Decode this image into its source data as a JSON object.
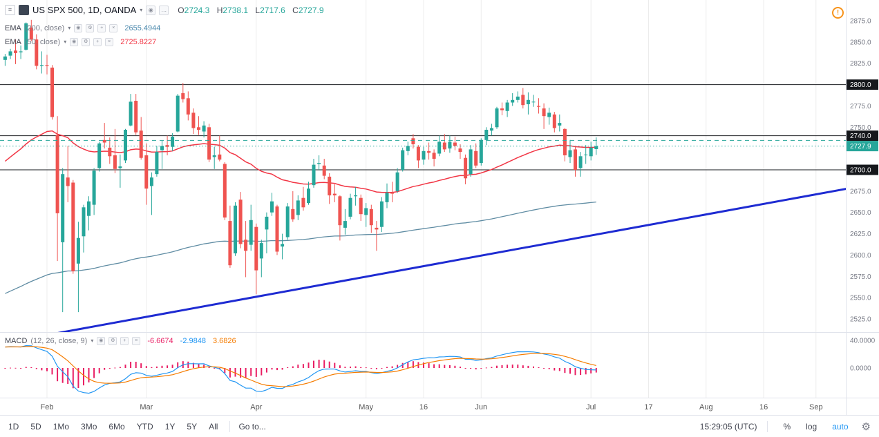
{
  "header": {
    "symbol_title": "US SPX 500, 1D, OANDA",
    "ohlc": {
      "o_label": "O",
      "o_value": "2724.3",
      "h_label": "H",
      "h_value": "2738.1",
      "l_label": "L",
      "l_value": "2717.6",
      "c_label": "C",
      "c_value": "2727.9"
    },
    "alert_icon": "!"
  },
  "indicators": [
    {
      "name": "EMA",
      "params": "(200, close)",
      "value": "2655.4944",
      "color": "#4b89ad"
    },
    {
      "name": "EMA",
      "params": "(50, close)",
      "value": "2725.8227",
      "color": "#f23645"
    }
  ],
  "macd_legend": {
    "name": "MACD",
    "params": "(12, 26, close, 9)",
    "values": [
      {
        "text": "-6.6674",
        "color": "#e91e63"
      },
      {
        "text": "-2.9848",
        "color": "#2196f3"
      },
      {
        "text": "3.6826",
        "color": "#f57c00"
      }
    ]
  },
  "price_axis": {
    "labels": [
      "2875.0",
      "2850.0",
      "2825.0",
      "2775.0",
      "2750.0",
      "2675.0",
      "2650.0",
      "2625.0",
      "2600.0",
      "2575.0",
      "2550.0",
      "2525.0"
    ],
    "badges": [
      {
        "text": "2800.0",
        "price": 2800,
        "bg": "#16181c",
        "fg": "#ffffff"
      },
      {
        "text": "2740.0",
        "price": 2740,
        "bg": "#16181c",
        "fg": "#ffffff"
      },
      {
        "text": "2727.9",
        "price": 2727.9,
        "bg": "#26a69a",
        "fg": "#ffffff"
      },
      {
        "text": "2700.0",
        "price": 2700,
        "bg": "#16181c",
        "fg": "#ffffff"
      }
    ],
    "macd_labels": [
      {
        "text": "40.0000",
        "value": 40
      },
      {
        "text": "0.0000",
        "value": 0
      }
    ]
  },
  "time_axis": [
    {
      "label": "Feb",
      "i": 8
    },
    {
      "label": "Mar",
      "i": 27
    },
    {
      "label": "Apr",
      "i": 48
    },
    {
      "label": "May",
      "i": 69
    },
    {
      "label": "16",
      "i": 80
    },
    {
      "label": "Jun",
      "i": 91
    },
    {
      "label": "Jul",
      "i": 112
    },
    {
      "label": "17",
      "i": 123
    },
    {
      "label": "Aug",
      "i": 134
    },
    {
      "label": "16",
      "i": 145
    },
    {
      "label": "Sep",
      "i": 155
    }
  ],
  "toolbar": {
    "ranges": [
      "1D",
      "5D",
      "1Mo",
      "3Mo",
      "6Mo",
      "YTD",
      "1Y",
      "5Y",
      "All"
    ],
    "goto_label": "Go to...",
    "clock": "15:29:05 (UTC)",
    "percent_label": "%",
    "log_label": "log",
    "auto_label": "auto"
  },
  "chart_data": {
    "type": "candlestick",
    "symbol": "US SPX 500",
    "interval": "1D",
    "exchange": "OANDA",
    "title": "US SPX 500, 1D, OANDA",
    "visible_price_range": [
      2525,
      2875
    ],
    "price_tick_step": 25,
    "last_ohlc": {
      "open": 2724.3,
      "high": 2738.1,
      "low": 2717.6,
      "close": 2727.9
    },
    "candles_ohlc": [
      [
        2829,
        2836,
        2822,
        2833
      ],
      [
        2834,
        2842,
        2830,
        2839
      ],
      [
        2840,
        2853,
        2824,
        2837
      ],
      [
        2838,
        2846,
        2830,
        2839
      ],
      [
        2841,
        2873,
        2840,
        2872
      ],
      [
        2867,
        2876,
        2851,
        2853
      ],
      [
        2853,
        2859,
        2818,
        2822
      ],
      [
        2822,
        2839,
        2813,
        2823
      ],
      [
        2823,
        2835,
        2812,
        2822
      ],
      [
        2820,
        2823,
        2759,
        2762
      ],
      [
        2741,
        2763,
        2593,
        2649
      ],
      [
        2615,
        2702,
        2533,
        2695
      ],
      [
        2691,
        2728,
        2662,
        2681
      ],
      [
        2685,
        2688,
        2578,
        2581
      ],
      [
        2590,
        2639,
        2533,
        2620
      ],
      [
        2622,
        2659,
        2603,
        2656
      ],
      [
        2646,
        2669,
        2629,
        2663
      ],
      [
        2659,
        2702,
        2647,
        2699
      ],
      [
        2702,
        2733,
        2698,
        2731
      ],
      [
        2735,
        2755,
        2725,
        2732
      ],
      [
        2726,
        2738,
        2707,
        2716
      ],
      [
        2717,
        2748,
        2696,
        2701
      ],
      [
        2702,
        2718,
        2679,
        2704
      ],
      [
        2711,
        2748,
        2708,
        2747
      ],
      [
        2752,
        2789,
        2751,
        2780
      ],
      [
        2781,
        2789,
        2741,
        2744
      ],
      [
        2746,
        2762,
        2712,
        2714
      ],
      [
        2717,
        2731,
        2659,
        2678
      ],
      [
        2681,
        2697,
        2647,
        2691
      ],
      [
        2695,
        2728,
        2692,
        2721
      ],
      [
        2723,
        2734,
        2701,
        2728
      ],
      [
        2729,
        2740,
        2717,
        2727
      ],
      [
        2727,
        2743,
        2722,
        2739
      ],
      [
        2745,
        2789,
        2744,
        2787
      ],
      [
        2790,
        2802,
        2779,
        2783
      ],
      [
        2784,
        2792,
        2758,
        2765
      ],
      [
        2767,
        2772,
        2742,
        2749
      ],
      [
        2750,
        2763,
        2741,
        2747
      ],
      [
        2745,
        2757,
        2738,
        2752
      ],
      [
        2750,
        2754,
        2709,
        2712
      ],
      [
        2715,
        2727,
        2701,
        2717
      ],
      [
        2718,
        2740,
        2710,
        2712
      ],
      [
        2707,
        2709,
        2641,
        2644
      ],
      [
        2640,
        2658,
        2585,
        2588
      ],
      [
        2602,
        2662,
        2599,
        2658
      ],
      [
        2665,
        2674,
        2608,
        2613
      ],
      [
        2618,
        2640,
        2574,
        2605
      ],
      [
        2612,
        2659,
        2605,
        2641
      ],
      [
        2633,
        2637,
        2554,
        2582
      ],
      [
        2596,
        2618,
        2574,
        2614
      ],
      [
        2630,
        2650,
        2602,
        2645
      ],
      [
        2650,
        2673,
        2646,
        2663
      ],
      [
        2657,
        2659,
        2600,
        2604
      ],
      [
        2610,
        2625,
        2595,
        2613
      ],
      [
        2621,
        2661,
        2618,
        2657
      ],
      [
        2654,
        2675,
        2639,
        2642
      ],
      [
        2647,
        2670,
        2641,
        2664
      ],
      [
        2667,
        2680,
        2652,
        2656
      ],
      [
        2661,
        2686,
        2659,
        2678
      ],
      [
        2682,
        2713,
        2679,
        2706
      ],
      [
        2707,
        2717,
        2700,
        2708
      ],
      [
        2705,
        2713,
        2689,
        2693
      ],
      [
        2692,
        2696,
        2660,
        2670
      ],
      [
        2672,
        2683,
        2662,
        2670
      ],
      [
        2669,
        2670,
        2617,
        2635
      ],
      [
        2632,
        2654,
        2624,
        2640
      ],
      [
        2645,
        2672,
        2642,
        2667
      ],
      [
        2669,
        2680,
        2658,
        2670
      ],
      [
        2667,
        2671,
        2640,
        2648
      ],
      [
        2647,
        2661,
        2633,
        2655
      ],
      [
        2654,
        2659,
        2626,
        2635
      ],
      [
        2632,
        2640,
        2605,
        2630
      ],
      [
        2633,
        2668,
        2627,
        2663
      ],
      [
        2662,
        2684,
        2655,
        2673
      ],
      [
        2673,
        2686,
        2662,
        2672
      ],
      [
        2675,
        2702,
        2673,
        2697
      ],
      [
        2700,
        2726,
        2698,
        2723
      ],
      [
        2722,
        2733,
        2717,
        2728
      ],
      [
        2737,
        2742,
        2725,
        2730
      ],
      [
        2727,
        2729,
        2702,
        2711
      ],
      [
        2712,
        2727,
        2706,
        2722
      ],
      [
        2722,
        2732,
        2712,
        2720
      ],
      [
        2720,
        2724,
        2704,
        2713
      ],
      [
        2719,
        2740,
        2716,
        2733
      ],
      [
        2732,
        2742,
        2721,
        2724
      ],
      [
        2725,
        2740,
        2720,
        2733
      ],
      [
        2732,
        2739,
        2723,
        2728
      ],
      [
        2725,
        2730,
        2713,
        2721
      ],
      [
        2714,
        2718,
        2683,
        2690
      ],
      [
        2695,
        2729,
        2692,
        2724
      ],
      [
        2722,
        2731,
        2702,
        2705
      ],
      [
        2708,
        2737,
        2705,
        2735
      ],
      [
        2735,
        2750,
        2729,
        2747
      ],
      [
        2746,
        2754,
        2740,
        2749
      ],
      [
        2750,
        2774,
        2748,
        2772
      ],
      [
        2772,
        2779,
        2764,
        2770
      ],
      [
        2769,
        2782,
        2762,
        2779
      ],
      [
        2779,
        2790,
        2775,
        2782
      ],
      [
        2782,
        2792,
        2779,
        2786
      ],
      [
        2788,
        2796,
        2772,
        2776
      ],
      [
        2777,
        2791,
        2765,
        2782
      ],
      [
        2780,
        2788,
        2774,
        2780
      ],
      [
        2775,
        2784,
        2766,
        2774
      ],
      [
        2772,
        2778,
        2748,
        2763
      ],
      [
        2762,
        2773,
        2753,
        2767
      ],
      [
        2765,
        2768,
        2744,
        2749
      ],
      [
        2752,
        2765,
        2745,
        2755
      ],
      [
        2748,
        2749,
        2710,
        2717
      ],
      [
        2715,
        2735,
        2708,
        2723
      ],
      [
        2724,
        2728,
        2692,
        2700
      ],
      [
        2702,
        2721,
        2692,
        2716
      ],
      [
        2718,
        2729,
        2707,
        2718
      ],
      [
        2716,
        2733,
        2711,
        2726
      ],
      [
        2724.3,
        2738.1,
        2717.6,
        2727.9
      ]
    ],
    "h_lines": [
      2800,
      2740,
      2700
    ],
    "dashed_line_price": 2734.5,
    "current_price": 2727.9,
    "trend_line": {
      "from_index": -1,
      "from_price": 2496,
      "to_index": 161,
      "to_price": 2678,
      "color": "#1e2bd2"
    },
    "overlays": {
      "ema50_seed": 2705,
      "ema200_seed": 2552,
      "ema50_color": "#f23645",
      "ema200_color": "#5f8ca3"
    },
    "macd": {
      "seed_ema12": 2800,
      "seed_ema26": 2770,
      "hist_color": "#e91e63",
      "macd_color": "#2196f3",
      "signal_color": "#f57c00",
      "displayed_values": [
        -6.6674,
        -2.9848,
        3.6826
      ]
    },
    "colors": {
      "up": "#26a69a",
      "down": "#ef5350"
    }
  }
}
